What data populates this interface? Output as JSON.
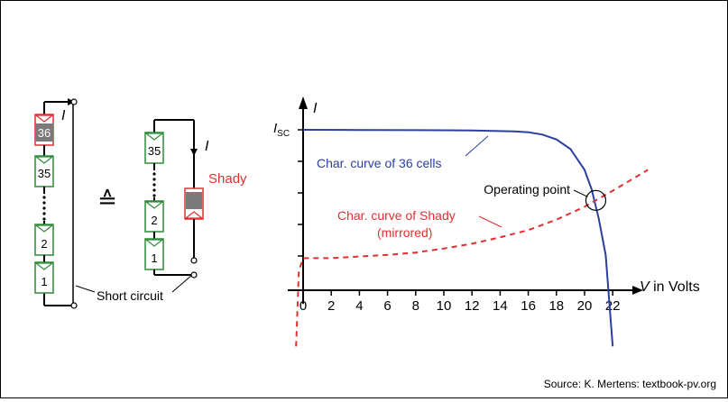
{
  "left_module": {
    "cells": [
      "36",
      "35",
      "2",
      "1"
    ],
    "current_label": "I",
    "short_circuit_label": "Short circuit"
  },
  "equivalence_symbol": "≙",
  "right_module": {
    "cells": [
      "35",
      "2",
      "1"
    ],
    "current_label": "I",
    "shady_label": "Shady"
  },
  "colors": {
    "cell_green": "#2e8b3a",
    "shady_red": "#e03030",
    "curve_blue": "#2a3fa0",
    "shady_gray": "#7a7a7a"
  },
  "chart_data": {
    "type": "line",
    "xlabel_var": "V",
    "xlabel_unit": " in Volts",
    "ylabel": "I",
    "isc_label": "I",
    "isc_sub": "SC",
    "xlim": [
      -1,
      23
    ],
    "x_ticks": [
      0,
      2,
      4,
      6,
      8,
      10,
      12,
      14,
      16,
      18,
      20,
      22
    ],
    "series": [
      {
        "name": "Char. curve of 36 cells",
        "color": "#2a3fa0",
        "style": "solid",
        "x": [
          0,
          4,
          8,
          12,
          15,
          16,
          17,
          18,
          19,
          20,
          20.5,
          21,
          21.5,
          22
        ],
        "y": [
          1.0,
          0.999,
          0.998,
          0.996,
          0.99,
          0.985,
          0.97,
          0.94,
          0.88,
          0.75,
          0.63,
          0.45,
          0.22,
          -0.35
        ]
      },
      {
        "name": "Char. curve of Shady\n(mirrored)",
        "color": "#e03030",
        "style": "dashed",
        "x": [
          -0.5,
          -0.3,
          0,
          2,
          4,
          6,
          8,
          10,
          12,
          14,
          16,
          18,
          20,
          22,
          24.5
        ],
        "y": [
          -0.35,
          0.12,
          0.2,
          0.2,
          0.21,
          0.22,
          0.235,
          0.26,
          0.29,
          0.33,
          0.375,
          0.44,
          0.52,
          0.62,
          0.75
        ]
      }
    ],
    "annotation": "Operating point",
    "operating_point": {
      "x": 20.8,
      "y": 0.56
    }
  },
  "source_text": "Source: K. Mertens: textbook-pv.org"
}
